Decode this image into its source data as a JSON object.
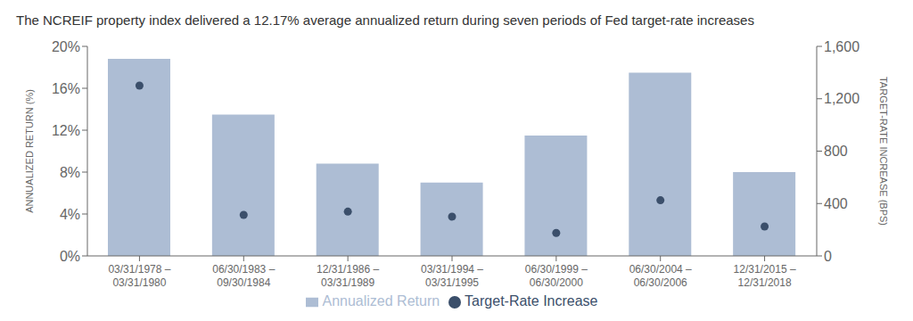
{
  "chart_data": {
    "type": "bar",
    "title": "The NCREIF property index delivered a 12.17% average annualized return during seven periods of Fed target-rate increases",
    "categories": [
      "03/31/1978 –\n03/31/1980",
      "06/30/1983 –\n09/30/1984",
      "12/31/1986 –\n03/31/1989",
      "03/31/1994 –\n03/31/1995",
      "06/30/1999 –\n06/30/2000",
      "06/30/2004 –\n06/30/2006",
      "12/31/2015 –\n12/31/2018"
    ],
    "series": [
      {
        "name": "Annualized Return",
        "type": "bar",
        "color": "#adbdd4",
        "values": [
          18.8,
          13.5,
          8.8,
          7.0,
          11.5,
          17.5,
          8.0
        ]
      },
      {
        "name": "Target-Rate Increase",
        "type": "scatter",
        "marker": "circle",
        "color": "#3b4f6b",
        "axis": "y2",
        "values": [
          1300,
          313,
          338,
          300,
          175,
          425,
          225
        ]
      }
    ],
    "ylabel": "ANNUALIZED RETURN (%)",
    "y2label": "TARGET-RATE INCREASE (BPS)",
    "ylim": [
      0,
      20
    ],
    "yticks": [
      {
        "value": 0,
        "label": "0%"
      },
      {
        "value": 4,
        "label": "4%"
      },
      {
        "value": 8,
        "label": "8%"
      },
      {
        "value": 12,
        "label": "12%"
      },
      {
        "value": 16,
        "label": "16%"
      },
      {
        "value": 20,
        "label": "20%"
      }
    ],
    "y2lim": [
      0,
      1600
    ],
    "y2ticks": [
      0,
      400,
      800,
      {
        "value": 1200,
        "label": "1,200"
      },
      {
        "value": 1600,
        "label": "1,600"
      }
    ],
    "legend": "bottom",
    "grid": false
  }
}
